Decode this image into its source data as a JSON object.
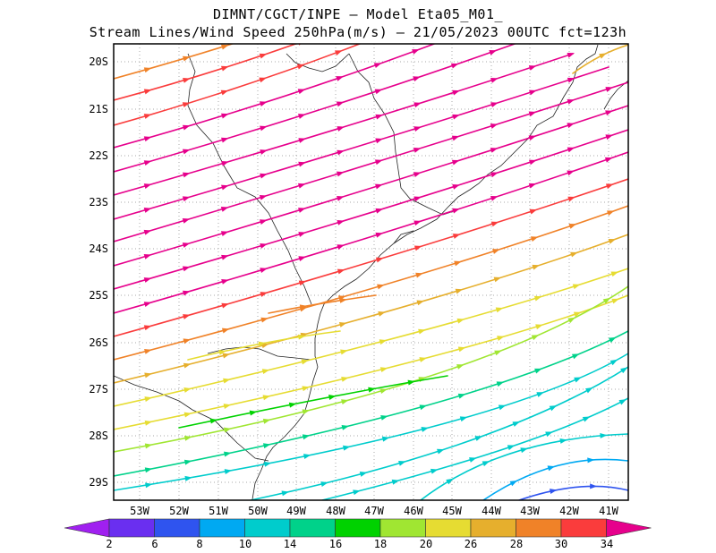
{
  "title": {
    "line1": "DIMNT/CGCT/INPE —  Model Eta05_M01_",
    "line2": "Stream Lines/Wind Speed 250hPa(m/s) —  21/05/2023 00UTC fct=123h"
  },
  "axes": {
    "lat_labels": [
      "20S",
      "21S",
      "22S",
      "23S",
      "24S",
      "25S",
      "26S",
      "27S",
      "28S",
      "29S"
    ],
    "lon_labels": [
      "53W",
      "52W",
      "51W",
      "50W",
      "49W",
      "48W",
      "47W",
      "46W",
      "45W",
      "44W",
      "43W",
      "42W",
      "41W"
    ]
  },
  "colorbar": {
    "labels": [
      "2",
      "6",
      "8",
      "10",
      "14",
      "16",
      "18",
      "20",
      "26",
      "28",
      "30",
      "34"
    ],
    "colors": [
      "#a020f0",
      "#6a2ff0",
      "#2f54ef",
      "#00a9f2",
      "#00cccc",
      "#00d28a",
      "#00d200",
      "#a0e632",
      "#e6dc32",
      "#e6af2d",
      "#f08228",
      "#fa3c3c",
      "#e6008c"
    ]
  }
}
